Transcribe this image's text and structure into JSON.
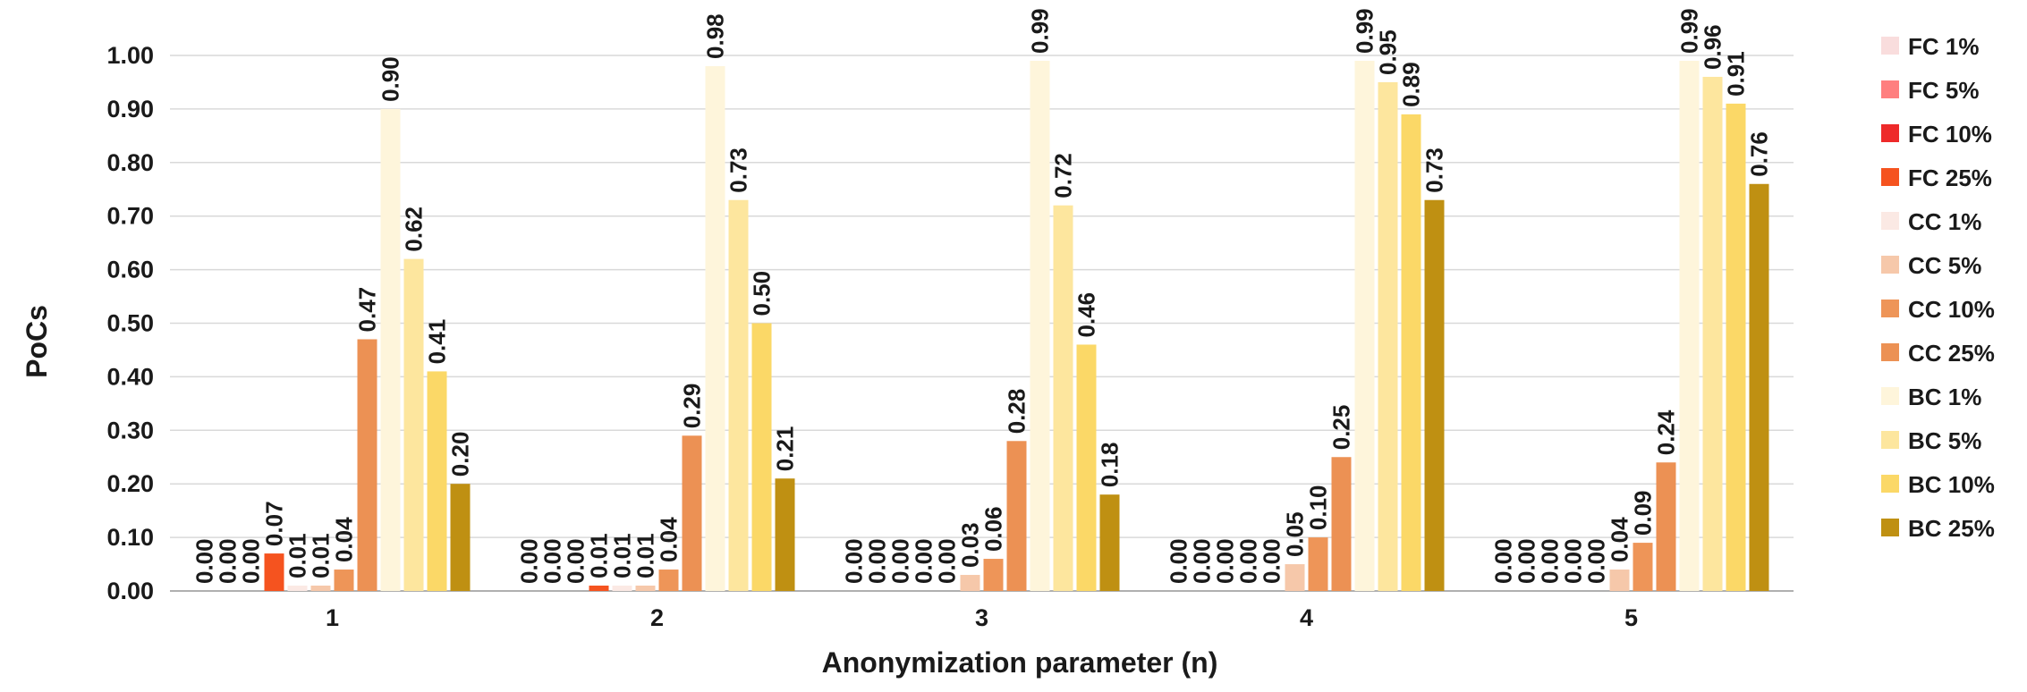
{
  "chart_data": {
    "type": "bar",
    "xlabel": "Anonymization parameter (n)",
    "ylabel": "PoCs",
    "ylim": [
      0,
      1.0
    ],
    "yticks": [
      "0.00",
      "0.10",
      "0.20",
      "0.30",
      "0.40",
      "0.50",
      "0.60",
      "0.70",
      "0.80",
      "0.90",
      "1.00"
    ],
    "grid": true,
    "legend_position": "right",
    "categories": [
      "1",
      "2",
      "3",
      "4",
      "5"
    ],
    "series": [
      {
        "name": "FC 1%",
        "color": "#f9dddd",
        "values": [
          0.0,
          0.0,
          0.0,
          0.0,
          0.0
        ]
      },
      {
        "name": "FC 5%",
        "color": "#ff7f7f",
        "values": [
          0.0,
          0.0,
          0.0,
          0.0,
          0.0
        ]
      },
      {
        "name": "FC 10%",
        "color": "#ee2a2a",
        "values": [
          0.0,
          0.0,
          0.0,
          0.0,
          0.0
        ]
      },
      {
        "name": "FC 25%",
        "color": "#f5531f",
        "values": [
          0.07,
          0.01,
          0.0,
          0.0,
          0.0
        ]
      },
      {
        "name": "CC 1%",
        "color": "#fbe9e4",
        "values": [
          0.01,
          0.01,
          0.0,
          0.0,
          0.0
        ]
      },
      {
        "name": "CC 5%",
        "color": "#f6c8aa",
        "values": [
          0.01,
          0.01,
          0.03,
          0.05,
          0.04
        ]
      },
      {
        "name": "CC 10%",
        "color": "#ee9558",
        "values": [
          0.04,
          0.04,
          0.06,
          0.1,
          0.09
        ]
      },
      {
        "name": "CC 25%",
        "color": "#ec9154",
        "values": [
          0.47,
          0.29,
          0.28,
          0.25,
          0.24
        ]
      },
      {
        "name": "BC 1%",
        "color": "#fef5db",
        "values": [
          0.9,
          0.98,
          0.99,
          0.99,
          0.99
        ]
      },
      {
        "name": "BC 5%",
        "color": "#fde69e",
        "values": [
          0.62,
          0.73,
          0.72,
          0.95,
          0.96
        ]
      },
      {
        "name": "BC 10%",
        "color": "#fbd867",
        "values": [
          0.41,
          0.5,
          0.46,
          0.89,
          0.91
        ]
      },
      {
        "name": "BC 25%",
        "color": "#bf9012",
        "values": [
          0.2,
          0.21,
          0.18,
          0.73,
          0.76
        ]
      }
    ]
  }
}
